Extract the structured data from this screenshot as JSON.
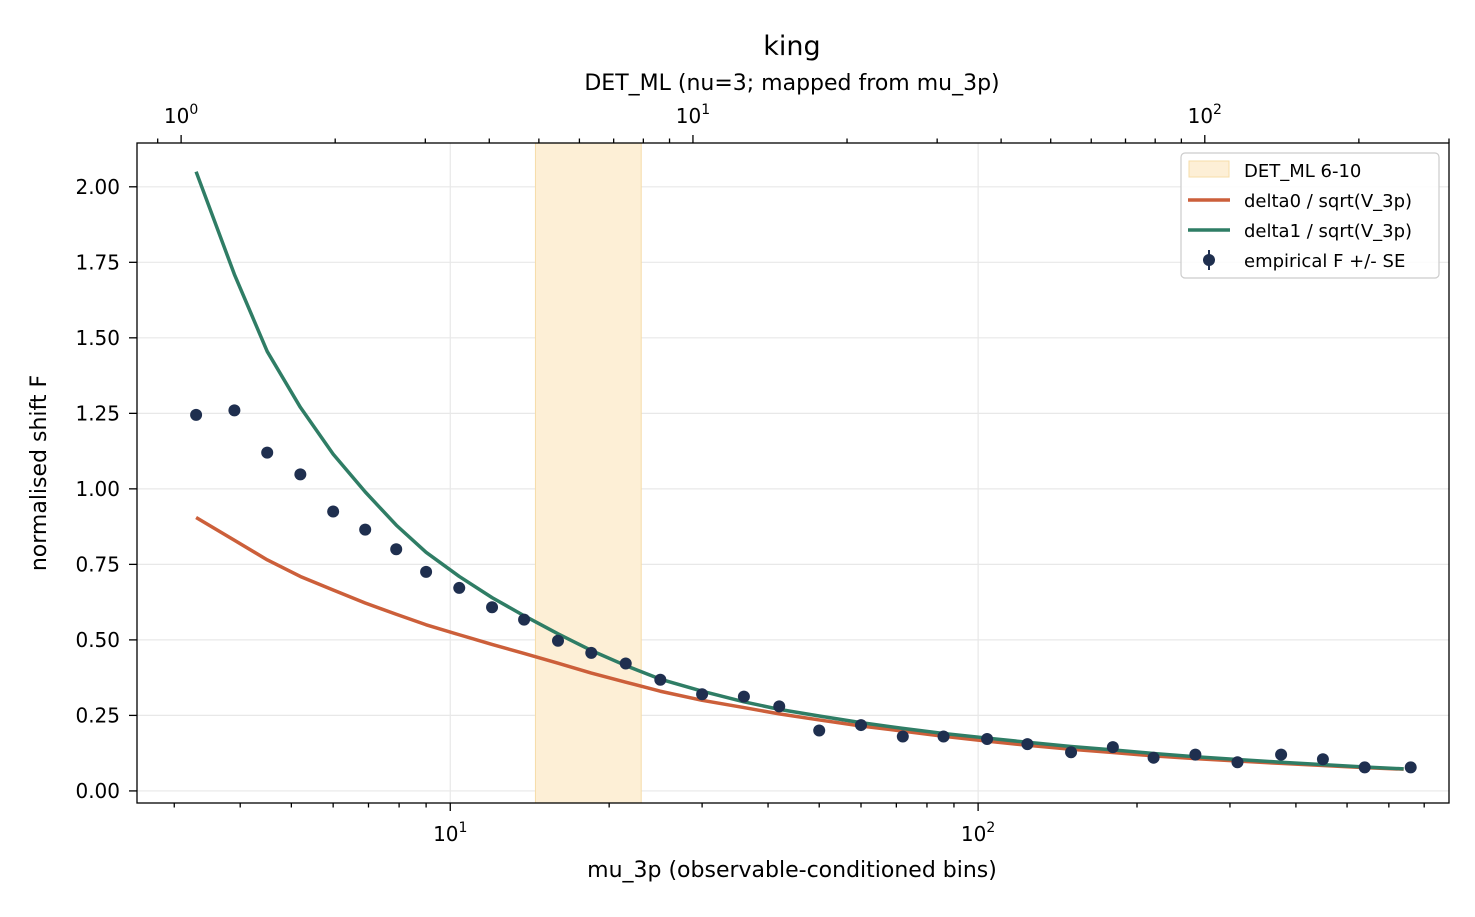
{
  "chart_data": {
    "type": "line",
    "title": "king",
    "secondary_xlabel": "DET_ML (nu=3; mapped from mu_3p)",
    "xlabel": "mu_3p (observable-conditioned bins)",
    "ylabel": "normalised shift F",
    "xscale": "log",
    "xlim": [
      2.55,
      780
    ],
    "ylim": [
      -0.04,
      2.145
    ],
    "grid": true,
    "legend_position": "upper right",
    "x_ticks": [
      {
        "value": 10,
        "base": "10",
        "exp": "1"
      },
      {
        "value": 100,
        "base": "10",
        "exp": "2"
      }
    ],
    "y_ticks": [
      {
        "value": 0.0,
        "label": "0.00"
      },
      {
        "value": 0.25,
        "label": "0.25"
      },
      {
        "value": 0.5,
        "label": "0.50"
      },
      {
        "value": 0.75,
        "label": "0.75"
      },
      {
        "value": 1.0,
        "label": "1.00"
      },
      {
        "value": 1.25,
        "label": "1.25"
      },
      {
        "value": 1.5,
        "label": "1.50"
      },
      {
        "value": 1.75,
        "label": "1.75"
      },
      {
        "value": 2.0,
        "label": "2.00"
      }
    ],
    "secondary_axis": {
      "scale": "log",
      "xlim": [
        0.82,
        300
      ],
      "ticks": [
        {
          "value": 1,
          "base": "10",
          "exp": "0"
        },
        {
          "value": 10,
          "base": "10",
          "exp": "1"
        },
        {
          "value": 100,
          "base": "10",
          "exp": "2"
        }
      ]
    },
    "band": {
      "label": "DET_ML 6-10",
      "x_range": [
        14.5,
        23.0
      ],
      "color": "#fdefd6",
      "edge_color": "#f6dca8"
    },
    "series": [
      {
        "name": "delta0 / sqrt(V_3p)",
        "kind": "line",
        "color": "#cc5f3a",
        "x": [
          3.3,
          3.9,
          4.5,
          5.2,
          6.0,
          6.9,
          7.9,
          9.0,
          10.4,
          12.0,
          13.8,
          16.0,
          18.5,
          21.5,
          25.0,
          30.0,
          36.0,
          42.0,
          50.0,
          60.0,
          72.0,
          86.0,
          104.0,
          124.0,
          150.0,
          180.0,
          215.0,
          258.0,
          310.0,
          375.0,
          450.0,
          540.0,
          640.0
        ],
        "y": [
          0.905,
          0.83,
          0.765,
          0.71,
          0.665,
          0.622,
          0.585,
          0.55,
          0.517,
          0.485,
          0.455,
          0.423,
          0.39,
          0.36,
          0.33,
          0.3,
          0.276,
          0.255,
          0.235,
          0.215,
          0.198,
          0.181,
          0.165,
          0.151,
          0.138,
          0.127,
          0.116,
          0.107,
          0.099,
          0.091,
          0.084,
          0.077,
          0.072
        ]
      },
      {
        "name": "delta1 / sqrt(V_3p)",
        "kind": "line",
        "color": "#2f7d65",
        "x": [
          3.3,
          3.9,
          4.5,
          5.2,
          6.0,
          6.9,
          7.9,
          9.0,
          10.4,
          12.0,
          13.8,
          16.0,
          18.5,
          21.5,
          25.0,
          30.0,
          36.0,
          42.0,
          50.0,
          60.0,
          72.0,
          86.0,
          104.0,
          124.0,
          150.0,
          180.0,
          215.0,
          258.0,
          310.0,
          375.0,
          450.0,
          540.0,
          640.0
        ],
        "y": [
          2.05,
          1.71,
          1.455,
          1.27,
          1.115,
          0.99,
          0.88,
          0.79,
          0.71,
          0.64,
          0.58,
          0.52,
          0.465,
          0.415,
          0.37,
          0.33,
          0.295,
          0.27,
          0.248,
          0.226,
          0.207,
          0.19,
          0.175,
          0.161,
          0.147,
          0.136,
          0.124,
          0.113,
          0.104,
          0.095,
          0.087,
          0.079,
          0.073
        ]
      },
      {
        "name": "empirical F +/- SE",
        "kind": "scatter",
        "color": "#1f2f4f",
        "x": [
          3.3,
          3.9,
          4.5,
          5.2,
          6.0,
          6.9,
          7.9,
          9.0,
          10.4,
          12.0,
          13.8,
          16.0,
          18.5,
          21.5,
          25.0,
          30.0,
          36.0,
          42.0,
          50.0,
          60.0,
          72.0,
          86.0,
          104.0,
          124.0,
          150.0,
          180.0,
          215.0,
          258.0,
          310.0,
          375.0,
          450.0,
          540.0,
          660.0
        ],
        "y": [
          1.245,
          1.26,
          1.12,
          1.048,
          0.925,
          0.865,
          0.8,
          0.725,
          0.672,
          0.608,
          0.567,
          0.497,
          0.457,
          0.422,
          0.368,
          0.32,
          0.312,
          0.28,
          0.2,
          0.218,
          0.18,
          0.18,
          0.172,
          0.155,
          0.128,
          0.145,
          0.11,
          0.12,
          0.095,
          0.12,
          0.105,
          0.078,
          0.078
        ]
      }
    ]
  }
}
